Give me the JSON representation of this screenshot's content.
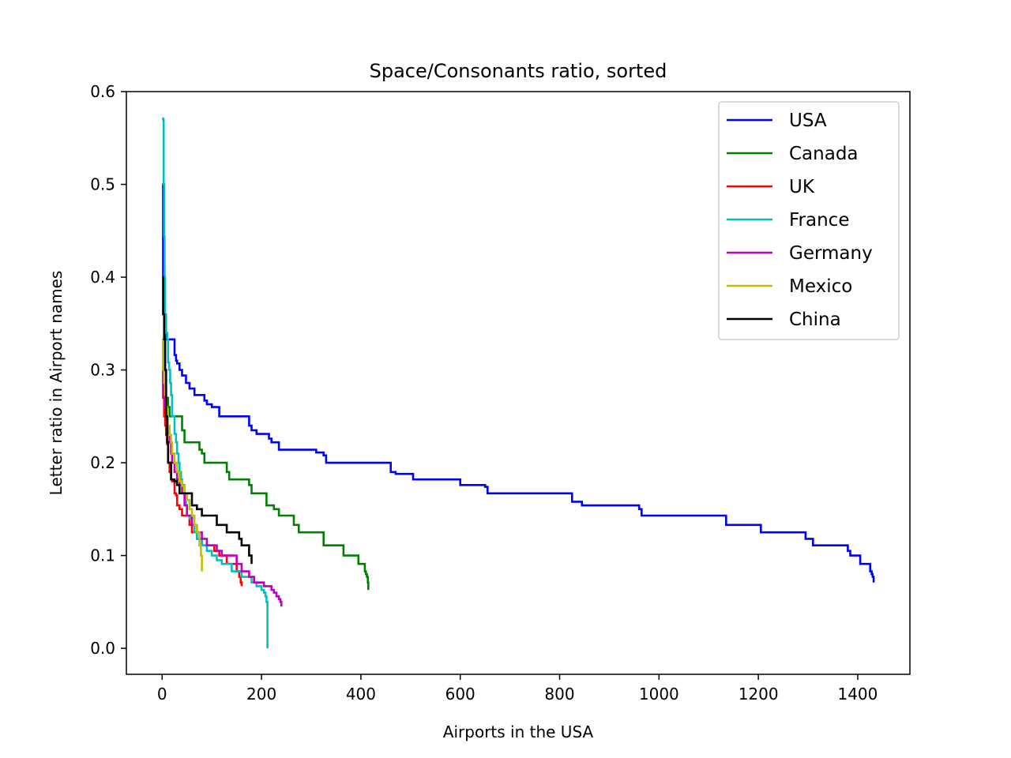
{
  "chart_data": {
    "type": "line",
    "title": "Space/Consonants ratio, sorted",
    "xlabel": "Airports in the USA",
    "ylabel": "Letter ratio in Airport names",
    "xlim": [
      -72,
      1505
    ],
    "ylim": [
      -0.028,
      0.6
    ],
    "xticks": [
      0,
      200,
      400,
      600,
      800,
      1000,
      1200,
      1400
    ],
    "yticks": [
      0.0,
      0.1,
      0.2,
      0.3,
      0.4,
      0.5,
      0.6
    ],
    "xtick_labels": [
      "0",
      "200",
      "400",
      "600",
      "800",
      "1000",
      "1200",
      "1400"
    ],
    "ytick_labels": [
      "0.0",
      "0.1",
      "0.2",
      "0.3",
      "0.4",
      "0.5",
      "0.6"
    ],
    "grid": false,
    "legend_position": "top-right",
    "series": [
      {
        "name": "USA",
        "color": "#0000ff",
        "x": [
          0,
          2,
          4,
          6,
          8,
          12,
          25,
          28,
          30,
          35,
          40,
          48,
          55,
          65,
          85,
          90,
          100,
          115,
          170,
          175,
          180,
          190,
          215,
          220,
          235,
          265,
          310,
          325,
          330,
          450,
          460,
          470,
          505,
          600,
          650,
          655,
          815,
          825,
          845,
          950,
          960,
          965,
          1130,
          1135,
          1200,
          1205,
          1290,
          1295,
          1310,
          1375,
          1380,
          1385,
          1400,
          1405,
          1420,
          1425,
          1428,
          1430,
          1432
        ],
        "y": [
          0.5,
          0.4,
          0.36,
          0.34,
          0.333,
          0.333,
          0.316,
          0.31,
          0.307,
          0.3,
          0.294,
          0.286,
          0.28,
          0.273,
          0.267,
          0.263,
          0.26,
          0.25,
          0.25,
          0.24,
          0.235,
          0.231,
          0.226,
          0.222,
          0.214,
          0.214,
          0.211,
          0.208,
          0.2,
          0.2,
          0.19,
          0.188,
          0.182,
          0.176,
          0.174,
          0.167,
          0.167,
          0.158,
          0.154,
          0.154,
          0.15,
          0.143,
          0.143,
          0.133,
          0.133,
          0.125,
          0.125,
          0.118,
          0.111,
          0.111,
          0.105,
          0.1,
          0.1,
          0.091,
          0.091,
          0.083,
          0.08,
          0.077,
          0.071
        ]
      },
      {
        "name": "Canada",
        "color": "#008000",
        "x": [
          0,
          2,
          4,
          6,
          8,
          12,
          15,
          18,
          25,
          40,
          45,
          55,
          75,
          80,
          85,
          90,
          95,
          130,
          135,
          145,
          175,
          180,
          200,
          210,
          225,
          235,
          260,
          265,
          275,
          320,
          325,
          360,
          365,
          390,
          395,
          400,
          408,
          410,
          412,
          414,
          415
        ],
        "y": [
          0.33,
          0.3,
          0.29,
          0.28,
          0.27,
          0.26,
          0.25,
          0.25,
          0.25,
          0.235,
          0.222,
          0.222,
          0.214,
          0.21,
          0.2,
          0.2,
          0.2,
          0.19,
          0.182,
          0.182,
          0.176,
          0.167,
          0.167,
          0.154,
          0.15,
          0.143,
          0.143,
          0.133,
          0.125,
          0.125,
          0.111,
          0.111,
          0.1,
          0.1,
          0.091,
          0.091,
          0.083,
          0.08,
          0.077,
          0.071,
          0.063
        ]
      },
      {
        "name": "UK",
        "color": "#ff0000",
        "x": [
          0,
          2,
          4,
          6,
          8,
          10,
          12,
          15,
          18,
          20,
          25,
          28,
          30,
          35,
          40,
          45,
          55,
          60,
          70,
          80,
          90,
          105,
          115,
          125,
          130,
          140,
          150,
          155,
          158,
          160
        ],
        "y": [
          0.3,
          0.27,
          0.25,
          0.24,
          0.23,
          0.22,
          0.2,
          0.19,
          0.182,
          0.18,
          0.167,
          0.165,
          0.154,
          0.15,
          0.143,
          0.143,
          0.133,
          0.125,
          0.118,
          0.111,
          0.111,
          0.105,
          0.1,
          0.1,
          0.091,
          0.091,
          0.083,
          0.077,
          0.071,
          0.067
        ]
      },
      {
        "name": "France",
        "color": "#00bfbf",
        "x": [
          0,
          1,
          2,
          3,
          4,
          5,
          6,
          8,
          10,
          12,
          14,
          16,
          18,
          20,
          22,
          25,
          28,
          30,
          33,
          35,
          38,
          40,
          45,
          48,
          50,
          55,
          60,
          65,
          70,
          80,
          90,
          100,
          110,
          120,
          140,
          160,
          170,
          180,
          190,
          200,
          205,
          208,
          210,
          212
        ],
        "y": [
          0.571,
          0.571,
          0.57,
          0.5,
          0.444,
          0.4,
          0.36,
          0.34,
          0.333,
          0.308,
          0.3,
          0.286,
          0.273,
          0.25,
          0.25,
          0.231,
          0.222,
          0.21,
          0.2,
          0.19,
          0.182,
          0.176,
          0.167,
          0.154,
          0.143,
          0.14,
          0.133,
          0.125,
          0.118,
          0.111,
          0.105,
          0.1,
          0.095,
          0.091,
          0.083,
          0.077,
          0.077,
          0.071,
          0.067,
          0.063,
          0.06,
          0.056,
          0.05,
          0.0
        ]
      },
      {
        "name": "Germany",
        "color": "#bf00bf",
        "x": [
          0,
          2,
          4,
          6,
          8,
          10,
          12,
          15,
          18,
          20,
          25,
          30,
          35,
          40,
          45,
          50,
          60,
          70,
          80,
          90,
          100,
          110,
          120,
          140,
          150,
          160,
          175,
          185,
          195,
          205,
          215,
          220,
          225,
          230,
          235,
          238,
          240
        ],
        "y": [
          0.3,
          0.28,
          0.27,
          0.26,
          0.25,
          0.24,
          0.231,
          0.222,
          0.21,
          0.2,
          0.19,
          0.182,
          0.176,
          0.167,
          0.154,
          0.143,
          0.133,
          0.125,
          0.118,
          0.111,
          0.111,
          0.105,
          0.1,
          0.1,
          0.091,
          0.083,
          0.077,
          0.071,
          0.071,
          0.067,
          0.067,
          0.063,
          0.06,
          0.056,
          0.053,
          0.05,
          0.045
        ]
      },
      {
        "name": "Mexico",
        "color": "#bfbf00",
        "x": [
          0,
          2,
          4,
          6,
          8,
          10,
          12,
          15,
          18,
          20,
          25,
          30,
          35,
          40,
          45,
          50,
          55,
          60,
          65,
          70,
          75,
          78,
          80
        ],
        "y": [
          0.333,
          0.3,
          0.286,
          0.273,
          0.26,
          0.25,
          0.24,
          0.23,
          0.222,
          0.21,
          0.2,
          0.19,
          0.18,
          0.175,
          0.167,
          0.16,
          0.15,
          0.143,
          0.133,
          0.125,
          0.111,
          0.1,
          0.083
        ]
      },
      {
        "name": "China",
        "color": "#000000",
        "x": [
          0,
          2,
          4,
          6,
          8,
          10,
          12,
          15,
          18,
          20,
          25,
          30,
          35,
          40,
          50,
          60,
          70,
          80,
          90,
          100,
          110,
          120,
          130,
          140,
          150,
          155,
          160,
          165,
          170,
          175,
          178,
          180
        ],
        "y": [
          0.4,
          0.36,
          0.333,
          0.3,
          0.25,
          0.222,
          0.2,
          0.2,
          0.182,
          0.182,
          0.18,
          0.176,
          0.167,
          0.167,
          0.167,
          0.154,
          0.15,
          0.143,
          0.143,
          0.143,
          0.133,
          0.133,
          0.125,
          0.125,
          0.125,
          0.118,
          0.111,
          0.111,
          0.111,
          0.1,
          0.1,
          0.091
        ]
      }
    ]
  }
}
